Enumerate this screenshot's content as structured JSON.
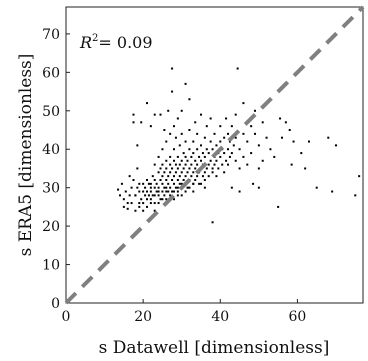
{
  "chart_data": {
    "type": "scatter",
    "xlabel": "s Datawell [dimensionless]",
    "ylabel": "s ERA5 [dimensionless]",
    "xlim": [
      0,
      77
    ],
    "ylim": [
      0,
      77
    ],
    "xticks": [
      0,
      20,
      40,
      60
    ],
    "yticks": [
      0,
      10,
      20,
      30,
      40,
      50,
      60,
      70
    ],
    "grid": false,
    "annotation": {
      "symbol": "R",
      "superscript": "2",
      "value": "= 0.09",
      "placement": "top-left"
    },
    "reference_line": {
      "type": "1:1",
      "style": "dashed",
      "color": "#808080"
    },
    "point_color": "#000000",
    "points": [
      [
        13.5,
        29.5
      ],
      [
        14,
        28
      ],
      [
        14.5,
        31
      ],
      [
        15,
        27
      ],
      [
        15,
        25
      ],
      [
        15.5,
        29
      ],
      [
        16,
        24.5
      ],
      [
        16.5,
        28
      ],
      [
        16.5,
        33
      ],
      [
        17,
        30
      ],
      [
        17,
        26
      ],
      [
        17.5,
        32
      ],
      [
        17.5,
        47
      ],
      [
        17.5,
        49
      ],
      [
        18,
        24
      ],
      [
        18,
        28
      ],
      [
        18.5,
        30
      ],
      [
        18.5,
        35
      ],
      [
        18.5,
        41
      ],
      [
        19,
        25
      ],
      [
        19,
        29
      ],
      [
        19,
        31
      ],
      [
        19.5,
        27
      ],
      [
        19.5,
        47
      ],
      [
        20,
        29
      ],
      [
        20,
        26
      ],
      [
        20.5,
        30
      ],
      [
        20.5,
        28
      ],
      [
        21,
        32
      ],
      [
        21,
        27
      ],
      [
        21,
        52
      ],
      [
        21.5,
        28
      ],
      [
        21.5,
        31
      ],
      [
        22,
        29
      ],
      [
        22,
        30
      ],
      [
        22,
        27
      ],
      [
        22,
        46
      ],
      [
        22.5,
        33
      ],
      [
        22.5,
        28
      ],
      [
        23,
        30
      ],
      [
        23,
        32
      ],
      [
        23,
        26
      ],
      [
        23,
        36
      ],
      [
        23,
        49
      ],
      [
        23.5,
        29
      ],
      [
        23.5,
        31
      ],
      [
        24,
        28
      ],
      [
        24,
        34
      ],
      [
        24,
        30
      ],
      [
        24,
        38
      ],
      [
        24.5,
        32
      ],
      [
        24.5,
        27
      ],
      [
        24.5,
        35
      ],
      [
        24.5,
        49
      ],
      [
        25,
        31
      ],
      [
        25,
        29
      ],
      [
        25,
        36
      ],
      [
        25,
        40
      ],
      [
        25,
        33
      ],
      [
        25.5,
        30
      ],
      [
        25.5,
        34
      ],
      [
        25.5,
        28
      ],
      [
        25.5,
        45
      ],
      [
        26,
        32
      ],
      [
        26,
        37
      ],
      [
        26,
        30
      ],
      [
        26,
        42
      ],
      [
        26,
        35
      ],
      [
        26.5,
        31
      ],
      [
        26.5,
        33
      ],
      [
        26.5,
        29
      ],
      [
        26.5,
        50
      ],
      [
        27,
        34
      ],
      [
        27,
        36
      ],
      [
        27,
        30
      ],
      [
        27,
        38
      ],
      [
        27,
        44
      ],
      [
        27.5,
        32
      ],
      [
        27.5,
        35
      ],
      [
        27.5,
        29
      ],
      [
        27.5,
        55
      ],
      [
        27.5,
        61
      ],
      [
        28,
        33
      ],
      [
        28,
        37
      ],
      [
        28,
        31
      ],
      [
        28,
        40
      ],
      [
        28,
        46
      ],
      [
        28.5,
        34
      ],
      [
        28.5,
        36
      ],
      [
        28.5,
        30
      ],
      [
        28.5,
        43
      ],
      [
        29,
        35
      ],
      [
        29,
        32
      ],
      [
        29,
        38
      ],
      [
        29,
        28
      ],
      [
        29,
        48
      ],
      [
        29.5,
        33
      ],
      [
        29.5,
        36
      ],
      [
        29.5,
        31
      ],
      [
        29.5,
        41
      ],
      [
        30,
        34
      ],
      [
        30,
        37
      ],
      [
        30,
        30
      ],
      [
        30,
        44
      ],
      [
        30,
        50
      ],
      [
        30.5,
        35
      ],
      [
        30.5,
        32
      ],
      [
        30.5,
        39
      ],
      [
        31,
        33
      ],
      [
        31,
        36
      ],
      [
        31,
        38
      ],
      [
        31,
        42
      ],
      [
        31,
        57
      ],
      [
        31.5,
        34
      ],
      [
        31.5,
        30
      ],
      [
        31.5,
        37
      ],
      [
        32,
        35
      ],
      [
        32,
        32
      ],
      [
        32,
        40
      ],
      [
        32,
        45
      ],
      [
        32,
        53
      ],
      [
        32.5,
        33
      ],
      [
        32.5,
        36
      ],
      [
        32.5,
        38
      ],
      [
        33,
        34
      ],
      [
        33,
        31
      ],
      [
        33,
        39
      ],
      [
        33,
        42
      ],
      [
        33.5,
        35
      ],
      [
        33.5,
        32
      ],
      [
        33.5,
        37
      ],
      [
        33.5,
        47
      ],
      [
        34,
        33
      ],
      [
        34,
        36
      ],
      [
        34,
        40
      ],
      [
        34,
        44
      ],
      [
        34.5,
        34
      ],
      [
        34.5,
        38
      ],
      [
        34.5,
        31
      ],
      [
        35,
        35
      ],
      [
        35,
        37
      ],
      [
        35,
        41
      ],
      [
        35,
        49
      ],
      [
        35.5,
        33
      ],
      [
        35.5,
        36
      ],
      [
        35.5,
        39
      ],
      [
        36,
        34
      ],
      [
        36,
        38
      ],
      [
        36,
        43
      ],
      [
        36,
        30
      ],
      [
        36.5,
        35
      ],
      [
        36.5,
        40
      ],
      [
        36.5,
        46
      ],
      [
        37,
        36
      ],
      [
        37,
        33
      ],
      [
        37,
        39
      ],
      [
        37.5,
        37
      ],
      [
        37.5,
        42
      ],
      [
        37.5,
        48
      ],
      [
        38,
        35
      ],
      [
        38,
        40
      ],
      [
        38,
        21
      ],
      [
        38.5,
        36
      ],
      [
        38.5,
        38
      ],
      [
        38.5,
        44
      ],
      [
        39,
        37
      ],
      [
        39,
        41
      ],
      [
        39,
        33
      ],
      [
        39.5,
        39
      ],
      [
        39.5,
        35
      ],
      [
        40,
        38
      ],
      [
        40,
        42
      ],
      [
        40,
        46
      ],
      [
        40.5,
        36
      ],
      [
        40.5,
        40
      ],
      [
        41,
        39
      ],
      [
        41,
        43
      ],
      [
        41,
        34
      ],
      [
        41.5,
        37
      ],
      [
        41.5,
        48
      ],
      [
        42,
        40
      ],
      [
        42,
        36
      ],
      [
        42,
        44
      ],
      [
        42.5,
        38
      ],
      [
        42.5,
        42
      ],
      [
        43,
        39
      ],
      [
        43,
        46
      ],
      [
        43,
        30
      ],
      [
        43.5,
        41
      ],
      [
        44,
        37
      ],
      [
        44,
        43
      ],
      [
        44,
        49
      ],
      [
        44.5,
        61
      ],
      [
        45,
        40
      ],
      [
        45,
        35
      ],
      [
        45,
        29
      ],
      [
        46,
        38
      ],
      [
        46,
        44
      ],
      [
        46,
        52
      ],
      [
        47,
        42
      ],
      [
        47,
        36
      ],
      [
        48,
        39
      ],
      [
        48,
        46
      ],
      [
        48.5,
        31
      ],
      [
        49,
        44
      ],
      [
        49,
        50
      ],
      [
        50,
        41
      ],
      [
        50,
        35
      ],
      [
        50,
        30
      ],
      [
        51,
        37
      ],
      [
        51,
        47
      ],
      [
        52,
        43
      ],
      [
        53,
        40
      ],
      [
        54,
        38
      ],
      [
        55,
        25
      ],
      [
        55.5,
        48
      ],
      [
        56,
        43
      ],
      [
        57,
        47
      ],
      [
        58,
        45
      ],
      [
        58.5,
        36
      ],
      [
        59,
        42
      ],
      [
        61,
        39
      ],
      [
        62,
        35
      ],
      [
        63,
        42
      ],
      [
        65,
        30
      ],
      [
        68,
        43
      ],
      [
        69,
        29
      ],
      [
        70,
        41
      ],
      [
        75,
        28
      ],
      [
        76,
        33
      ],
      [
        18,
        28
      ],
      [
        19,
        26
      ],
      [
        20,
        24
      ],
      [
        21,
        25
      ],
      [
        22,
        26
      ],
      [
        23,
        24
      ],
      [
        16,
        26
      ],
      [
        20,
        31
      ],
      [
        24,
        26
      ],
      [
        26,
        27
      ],
      [
        27,
        28
      ],
      [
        28,
        27
      ],
      [
        29,
        30
      ],
      [
        30,
        28
      ],
      [
        31,
        29
      ],
      [
        32,
        30
      ],
      [
        33,
        29
      ],
      [
        35,
        31
      ],
      [
        36,
        32
      ],
      [
        38,
        34
      ],
      [
        21,
        29
      ],
      [
        22,
        31
      ],
      [
        25,
        27
      ],
      [
        28,
        29
      ],
      [
        30,
        31
      ],
      [
        33,
        31
      ],
      [
        26,
        29
      ],
      [
        24,
        29
      ],
      [
        23,
        28
      ],
      [
        29,
        29
      ]
    ]
  }
}
